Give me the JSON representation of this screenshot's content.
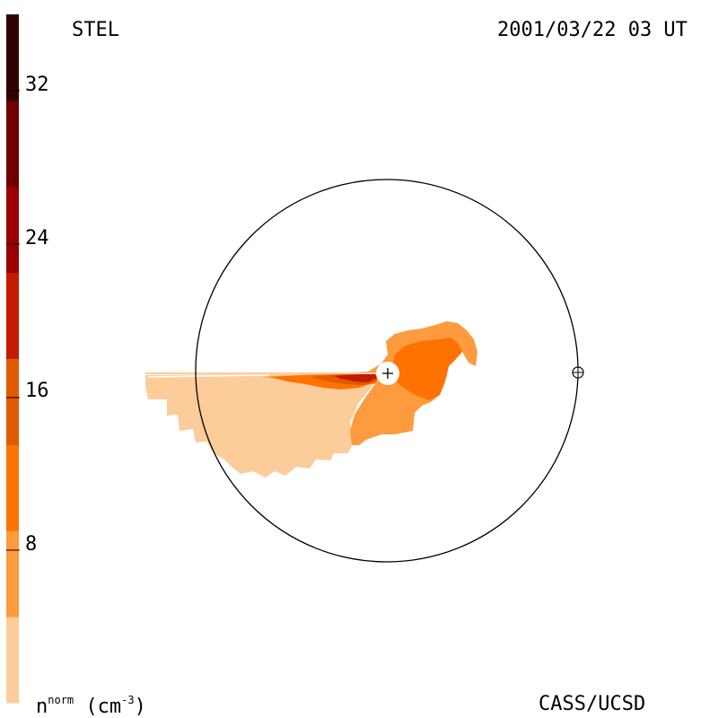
{
  "header": {
    "observatory": "STEL",
    "timestamp": "2001/03/22 03 UT"
  },
  "footer": {
    "credit": "CASS/UCSD",
    "unit_base": "n",
    "unit_sup": "norm",
    "unit_paren_open": "(cm",
    "unit_paren_sup": "-3",
    "unit_paren_close": ")"
  },
  "colorbar": {
    "ticks": [
      "8",
      "16",
      "24",
      "32"
    ],
    "levels": [
      {
        "color": "#fdcc9b"
      },
      {
        "color": "#fd9b3e"
      },
      {
        "color": "#fd7200"
      },
      {
        "color": "#e05a00"
      },
      {
        "color": "#c41a00"
      },
      {
        "color": "#9b0000"
      },
      {
        "color": "#6e0000"
      },
      {
        "color": "#330000"
      }
    ]
  },
  "symbols": {
    "sun": "sun-plus-icon",
    "earth": "earth-circle-plus-icon"
  }
}
